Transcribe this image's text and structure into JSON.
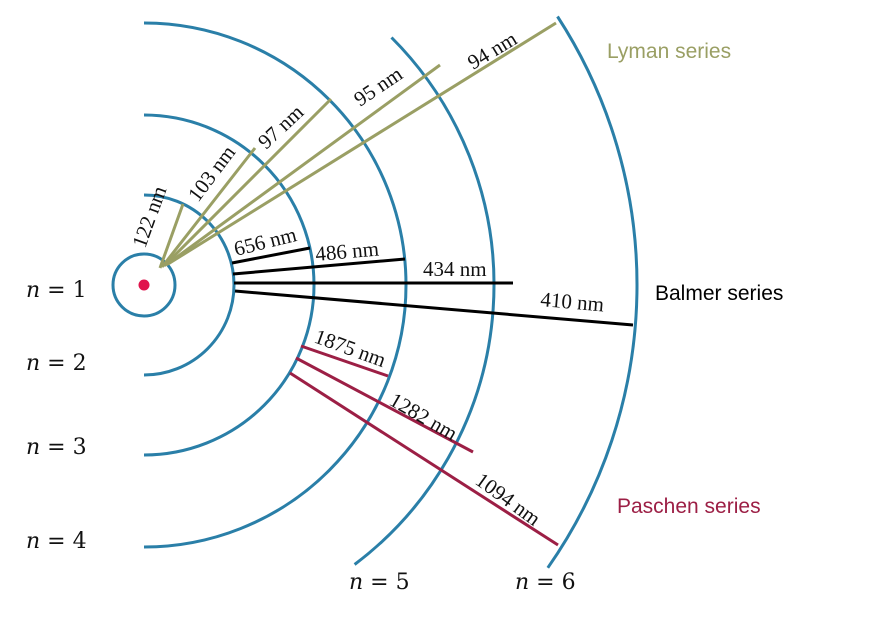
{
  "colors": {
    "orbit": "#2a7fa8",
    "nucleus": "#e0144c",
    "lyman": "#9a9f64",
    "balmer": "#000000",
    "paschen": "#9c1f45",
    "text": "#111111"
  },
  "levels": [
    {
      "symbol": "n",
      "value": "1"
    },
    {
      "symbol": "n",
      "value": "2"
    },
    {
      "symbol": "n",
      "value": "3"
    },
    {
      "symbol": "n",
      "value": "4"
    },
    {
      "symbol": "n",
      "value": "5"
    },
    {
      "symbol": "n",
      "value": "6"
    }
  ],
  "series": [
    {
      "name": "Lyman series",
      "color_key": "lyman",
      "wavelengths": [
        "122 nm",
        "103 nm",
        "97 nm",
        "95 nm",
        "94 nm"
      ]
    },
    {
      "name": "Balmer series",
      "color_key": "balmer",
      "wavelengths": [
        "656 nm",
        "486 nm",
        "434 nm",
        "410 nm"
      ]
    },
    {
      "name": "Paschen series",
      "color_key": "paschen",
      "wavelengths": [
        "1875 nm",
        "1282 nm",
        "1094 nm"
      ]
    }
  ]
}
